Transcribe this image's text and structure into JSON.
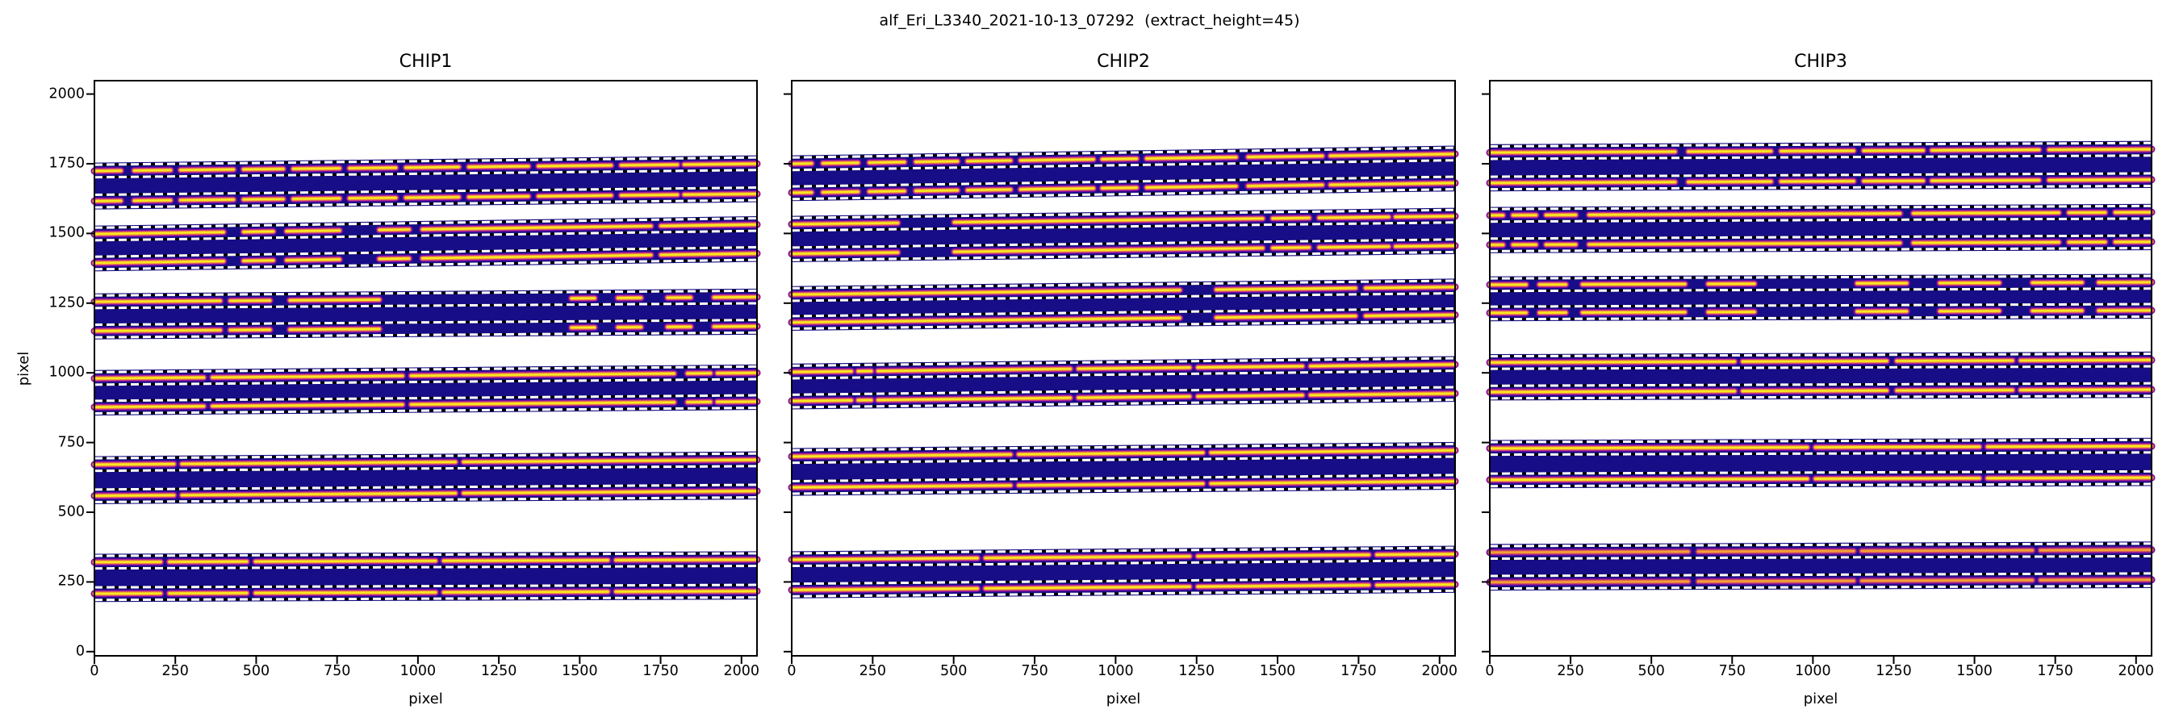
{
  "figure": {
    "title": "alf_Eri_L3340_2021-10-13_07292  (extract_height=45)",
    "background": "#ffffff"
  },
  "chart_data": {
    "type": "heatmap",
    "suptitle": "alf_Eri_L3340_2021-10-13_07292  (extract_height=45)",
    "extract_height": 45,
    "xlabel": "pixel",
    "ylabel": "pixel",
    "xlim": [
      0,
      2048
    ],
    "ylim": [
      -15,
      2048
    ],
    "xticks": [
      0,
      250,
      500,
      750,
      1000,
      1250,
      1500,
      1750,
      2000
    ],
    "yticks": [
      0,
      250,
      500,
      750,
      1000,
      1250,
      1500,
      1750,
      2000
    ],
    "colormap": "plasma",
    "traces_per_order": 2,
    "band_half_height": 30,
    "dash_offset_from_trace": 22.5,
    "colors": {
      "band_background": "#160d87",
      "dash_white": "#ffffff",
      "dash_black": "#000000",
      "trace_halo": "#7a06a3",
      "trace_mid": "#c14283",
      "trace_inner": "#f08a3c",
      "trace_core": "#f9e721",
      "trace_dim_halo": "#6a0a97",
      "trace_dim_mid": "#a62a8f",
      "trace_dim_inner": "#d85f4e",
      "trace_dim_core": "#f4a037",
      "axis": "#000000",
      "text": "#000000"
    },
    "panels": [
      {
        "title": "CHIP1",
        "show_ytick_labels": true,
        "orders": [
          {
            "y_top_left": 1724,
            "y_top_right": 1750,
            "pair_separation": 108,
            "dim": false,
            "gaps": [
              [
                0.04,
                0.06
              ],
              [
                0.115,
                0.13
              ],
              [
                0.21,
                0.225
              ],
              [
                0.285,
                0.3
              ],
              [
                0.37,
                0.385
              ],
              [
                0.455,
                0.47
              ],
              [
                0.55,
                0.565
              ],
              [
                0.655,
                0.67
              ],
              [
                0.78,
                0.795
              ],
              [
                0.88,
                0.89
              ]
            ]
          },
          {
            "y_top_left": 1498,
            "y_top_right": 1532,
            "pair_separation": 104,
            "dim": false,
            "gaps": [
              [
                0.195,
                0.225
              ],
              [
                0.27,
                0.29
              ],
              [
                0.37,
                0.43
              ],
              [
                0.475,
                0.495
              ],
              [
                0.84,
                0.855
              ]
            ]
          },
          {
            "y_top_left": 1255,
            "y_top_right": 1272,
            "pair_separation": 105,
            "dim": false,
            "gaps": [
              [
                0.19,
                0.205
              ],
              [
                0.265,
                0.295
              ],
              [
                0.43,
                0.72
              ],
              [
                0.755,
                0.79
              ],
              [
                0.825,
                0.865
              ],
              [
                0.9,
                0.935
              ]
            ]
          },
          {
            "y_top_left": 980,
            "y_top_right": 1000,
            "pair_separation": 103,
            "dim": false,
            "gaps": [
              [
                0.165,
                0.178
              ],
              [
                0.465,
                0.478
              ],
              [
                0.875,
                0.895
              ],
              [
                0.93,
                0.94
              ]
            ]
          },
          {
            "y_top_left": 671,
            "y_top_right": 688,
            "pair_separation": 112,
            "dim": false,
            "gaps": [
              [
                0.12,
                0.132
              ],
              [
                0.545,
                0.557
              ]
            ]
          },
          {
            "y_top_left": 321,
            "y_top_right": 330,
            "pair_separation": 113,
            "dim": false,
            "gaps": [
              [
                0.1,
                0.113
              ],
              [
                0.23,
                0.243
              ],
              [
                0.515,
                0.527
              ],
              [
                0.775,
                0.787
              ]
            ]
          }
        ]
      },
      {
        "title": "CHIP2",
        "show_ytick_labels": false,
        "orders": [
          {
            "y_top_left": 1750,
            "y_top_right": 1785,
            "pair_separation": 104,
            "dim": false,
            "gaps": [
              [
                0.03,
                0.047
              ],
              [
                0.1,
                0.117
              ],
              [
                0.17,
                0.187
              ],
              [
                0.25,
                0.265
              ],
              [
                0.33,
                0.345
              ],
              [
                0.455,
                0.468
              ],
              [
                0.52,
                0.535
              ],
              [
                0.67,
                0.688
              ],
              [
                0.8,
                0.812
              ]
            ]
          },
          {
            "y_top_left": 1533,
            "y_top_right": 1562,
            "pair_separation": 106,
            "dim": false,
            "gaps": [
              [
                0.16,
                0.245
              ],
              [
                0.71,
                0.725
              ],
              [
                0.78,
                0.795
              ],
              [
                0.9,
                0.91
              ]
            ]
          },
          {
            "y_top_left": 1281,
            "y_top_right": 1308,
            "pair_separation": 100,
            "dim": false,
            "gaps": [
              [
                0.585,
                0.64
              ],
              [
                0.85,
                0.865
              ]
            ]
          },
          {
            "y_top_left": 1003,
            "y_top_right": 1030,
            "pair_separation": 104,
            "dim": false,
            "gaps": [
              [
                0.09,
                0.1
              ],
              [
                0.12,
                0.13
              ],
              [
                0.42,
                0.432
              ],
              [
                0.6,
                0.612
              ],
              [
                0.77,
                0.782
              ]
            ]
          },
          {
            "y_top_left": 700,
            "y_top_right": 722,
            "pair_separation": 111,
            "dim": false,
            "gaps": [
              [
                0.33,
                0.342
              ],
              [
                0.62,
                0.632
              ]
            ]
          },
          {
            "y_top_left": 330,
            "y_top_right": 350,
            "pair_separation": 109,
            "dim": false,
            "gaps": [
              [
                0.28,
                0.292
              ],
              [
                0.6,
                0.612
              ],
              [
                0.87,
                0.882
              ]
            ]
          }
        ]
      },
      {
        "title": "CHIP3",
        "show_ytick_labels": false,
        "orders": [
          {
            "y_top_left": 1790,
            "y_top_right": 1802,
            "pair_separation": 109,
            "dim": false,
            "gaps": [
              [
                0.28,
                0.3
              ],
              [
                0.425,
                0.44
              ],
              [
                0.55,
                0.565
              ],
              [
                0.655,
                0.668
              ],
              [
                0.83,
                0.845
              ]
            ]
          },
          {
            "y_top_left": 1565,
            "y_top_right": 1576,
            "pair_separation": 106,
            "dim": false,
            "gaps": [
              [
                0.02,
                0.035
              ],
              [
                0.07,
                0.085
              ],
              [
                0.13,
                0.15
              ],
              [
                0.62,
                0.64
              ],
              [
                0.86,
                0.875
              ],
              [
                0.93,
                0.945
              ]
            ]
          },
          {
            "y_top_left": 1316,
            "y_top_right": 1325,
            "pair_separation": 101,
            "dim": false,
            "gaps": [
              [
                0.055,
                0.075
              ],
              [
                0.115,
                0.14
              ],
              [
                0.295,
                0.33
              ],
              [
                0.4,
                0.555
              ],
              [
                0.63,
                0.68
              ],
              [
                0.77,
                0.82
              ],
              [
                0.895,
                0.92
              ]
            ]
          },
          {
            "y_top_left": 1037,
            "y_top_right": 1046,
            "pair_separation": 106,
            "dim": false,
            "gaps": [
              [
                0.37,
                0.382
              ],
              [
                0.6,
                0.615
              ],
              [
                0.79,
                0.802
              ]
            ]
          },
          {
            "y_top_left": 729,
            "y_top_right": 737,
            "pair_separation": 113,
            "dim": false,
            "gaps": [
              [
                0.48,
                0.492
              ],
              [
                0.74,
                0.752
              ]
            ]
          },
          {
            "y_top_left": 356,
            "y_top_right": 365,
            "pair_separation": 107,
            "dim": true,
            "gaps": [
              [
                0.3,
                0.315
              ],
              [
                0.55,
                0.562
              ],
              [
                0.82,
                0.832
              ]
            ]
          }
        ]
      }
    ]
  }
}
